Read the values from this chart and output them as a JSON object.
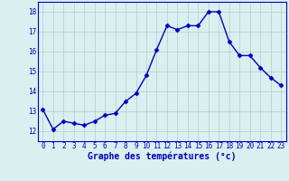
{
  "x": [
    0,
    1,
    2,
    3,
    4,
    5,
    6,
    7,
    8,
    9,
    10,
    11,
    12,
    13,
    14,
    15,
    16,
    17,
    18,
    19,
    20,
    21,
    22,
    23
  ],
  "y": [
    13.1,
    12.1,
    12.5,
    12.4,
    12.3,
    12.5,
    12.8,
    12.9,
    13.5,
    13.9,
    14.8,
    16.1,
    17.3,
    17.1,
    17.3,
    17.3,
    18.0,
    18.0,
    16.5,
    15.8,
    15.8,
    15.2,
    14.7,
    14.3
  ],
  "line_color": "#0000bb",
  "marker": "D",
  "markersize": 2.5,
  "linewidth": 1.0,
  "xlabel": "Graphe des températures (°c)",
  "xlabel_color": "#0000bb",
  "xlabel_fontsize": 7,
  "background_color": "#d8f0f0",
  "grid_color": "#b0cccc",
  "tick_color": "#0000bb",
  "tick_fontsize": 5.5,
  "ylim": [
    11.5,
    18.5
  ],
  "yticks": [
    12,
    13,
    14,
    15,
    16,
    17,
    18
  ],
  "xticks": [
    0,
    1,
    2,
    3,
    4,
    5,
    6,
    7,
    8,
    9,
    10,
    11,
    12,
    13,
    14,
    15,
    16,
    17,
    18,
    19,
    20,
    21,
    22,
    23
  ],
  "xlim": [
    -0.5,
    23.5
  ]
}
